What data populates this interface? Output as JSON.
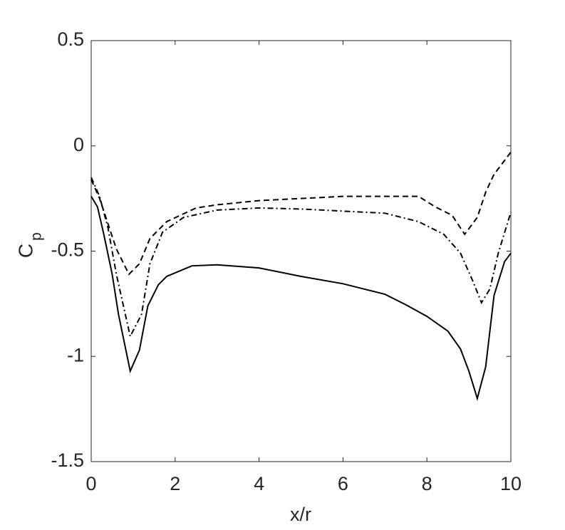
{
  "chart_data": {
    "type": "line",
    "xlabel": "x/r",
    "ylabel": "C",
    "ylabel_subscript": "p",
    "xlim": [
      0,
      10
    ],
    "ylim": [
      -1.5,
      0.5
    ],
    "xticks": [
      0,
      2,
      4,
      6,
      8,
      10
    ],
    "yticks": [
      0.5,
      0,
      -0.5,
      -1,
      -1.5
    ],
    "grid": false,
    "box": true,
    "series": [
      {
        "color": "#000000",
        "dash": "solid",
        "x": [
          0,
          0.15,
          0.3,
          0.5,
          0.65,
          0.93,
          1.15,
          1.35,
          1.6,
          1.8,
          2.4,
          3,
          4,
          5,
          6,
          7,
          7.5,
          8,
          8.5,
          8.8,
          9.0,
          9.2,
          9.4,
          9.6,
          9.85,
          10
        ],
        "values": [
          -0.24,
          -0.29,
          -0.42,
          -0.61,
          -0.8,
          -1.07,
          -0.97,
          -0.76,
          -0.66,
          -0.62,
          -0.57,
          -0.565,
          -0.58,
          -0.62,
          -0.655,
          -0.705,
          -0.755,
          -0.81,
          -0.88,
          -0.965,
          -1.07,
          -1.2,
          -1.05,
          -0.71,
          -0.55,
          -0.51
        ]
      },
      {
        "color": "#000000",
        "dash": "dashed",
        "x": [
          0,
          0.2,
          0.4,
          0.6,
          0.9,
          1.15,
          1.4,
          1.8,
          2.5,
          3,
          4,
          5,
          6,
          7,
          7.8,
          8.2,
          8.6,
          8.9,
          9.2,
          9.4,
          9.6,
          10
        ],
        "values": [
          -0.16,
          -0.25,
          -0.37,
          -0.49,
          -0.61,
          -0.56,
          -0.44,
          -0.36,
          -0.295,
          -0.28,
          -0.26,
          -0.25,
          -0.24,
          -0.24,
          -0.24,
          -0.29,
          -0.33,
          -0.42,
          -0.34,
          -0.22,
          -0.135,
          -0.03
        ]
      },
      {
        "color": "#000000",
        "dash": "dashdot",
        "x": [
          0,
          0.2,
          0.4,
          0.6,
          0.93,
          1.2,
          1.4,
          1.7,
          2.2,
          3,
          4,
          5,
          6,
          7,
          7.8,
          8.4,
          8.8,
          9.1,
          9.3,
          9.5,
          9.7,
          10
        ],
        "values": [
          -0.15,
          -0.24,
          -0.39,
          -0.61,
          -0.905,
          -0.8,
          -0.56,
          -0.41,
          -0.34,
          -0.305,
          -0.295,
          -0.3,
          -0.31,
          -0.32,
          -0.36,
          -0.42,
          -0.51,
          -0.645,
          -0.745,
          -0.68,
          -0.51,
          -0.315
        ]
      }
    ]
  }
}
